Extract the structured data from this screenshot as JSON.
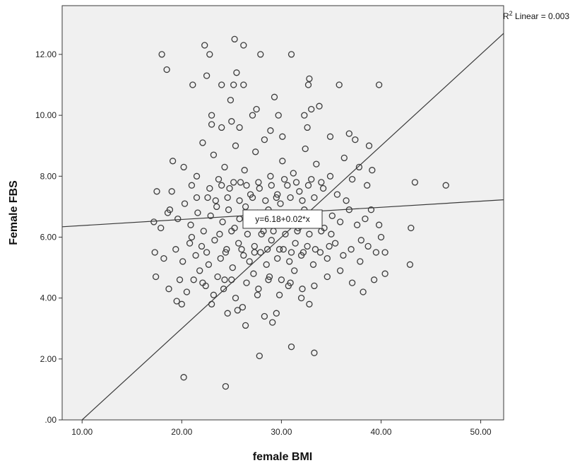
{
  "chart_data": {
    "type": "scatter",
    "xlabel": "female BMI",
    "ylabel": "Female FBS",
    "xlim": [
      8,
      52.3
    ],
    "ylim": [
      0,
      13.6
    ],
    "x_ticks": [
      10,
      20,
      30,
      40,
      50
    ],
    "x_tick_labels": [
      "10.00",
      "20.00",
      "30.00",
      "40.00",
      "50.00"
    ],
    "y_ticks": [
      0,
      2,
      4,
      6,
      8,
      10,
      12
    ],
    "y_tick_labels": [
      ".00",
      "2.00",
      "4.00",
      "6.00",
      "8.00",
      "10.00",
      "12.00"
    ],
    "r2_prefix": "R",
    "r2_sup": "2",
    "r2_suffix": " Linear = 0.003",
    "fit_equation": "y=6.18+0.02*x",
    "fit_line": {
      "intercept": 6.18,
      "slope": 0.02
    },
    "reference_line": {
      "intercept": -3.0,
      "slope": 0.3
    },
    "grid": false,
    "legend": "none",
    "colors": {
      "plot_bg": "#f0f0f0",
      "marker": "#3c3c3c",
      "line": "#3a3a3a",
      "frame": "#3a3a3a"
    },
    "points": [
      [
        18.0,
        12.0
      ],
      [
        18.5,
        11.5
      ],
      [
        22.3,
        12.3
      ],
      [
        22.8,
        12.0
      ],
      [
        25.3,
        12.5
      ],
      [
        26.2,
        12.3
      ],
      [
        27.9,
        12.0
      ],
      [
        31.0,
        12.0
      ],
      [
        21.1,
        11.0
      ],
      [
        22.5,
        11.3
      ],
      [
        24.0,
        11.0
      ],
      [
        25.2,
        11.0
      ],
      [
        25.5,
        11.4
      ],
      [
        26.2,
        11.0
      ],
      [
        32.7,
        11.0
      ],
      [
        32.8,
        11.2
      ],
      [
        35.8,
        11.0
      ],
      [
        39.8,
        11.0
      ],
      [
        24.9,
        10.5
      ],
      [
        27.5,
        10.2
      ],
      [
        29.3,
        10.6
      ],
      [
        32.3,
        10.0
      ],
      [
        33.0,
        10.2
      ],
      [
        33.8,
        10.3
      ],
      [
        23.0,
        10.0
      ],
      [
        25.0,
        9.8
      ],
      [
        27.1,
        10.0
      ],
      [
        29.7,
        10.0
      ],
      [
        23.0,
        9.7
      ],
      [
        24.0,
        9.6
      ],
      [
        25.8,
        9.6
      ],
      [
        28.9,
        9.5
      ],
      [
        32.6,
        9.6
      ],
      [
        34.9,
        9.3
      ],
      [
        36.8,
        9.4
      ],
      [
        37.4,
        9.2
      ],
      [
        38.8,
        9.0
      ],
      [
        30.1,
        9.3
      ],
      [
        17.5,
        7.5
      ],
      [
        18.6,
        6.8
      ],
      [
        19.1,
        8.5
      ],
      [
        20.2,
        8.3
      ],
      [
        21.0,
        7.7
      ],
      [
        21.5,
        8.0
      ],
      [
        22.1,
        9.1
      ],
      [
        22.6,
        7.3
      ],
      [
        23.2,
        8.7
      ],
      [
        23.7,
        7.9
      ],
      [
        24.3,
        8.3
      ],
      [
        24.8,
        7.6
      ],
      [
        25.4,
        9.0
      ],
      [
        25.9,
        7.8
      ],
      [
        26.3,
        8.2
      ],
      [
        26.9,
        7.4
      ],
      [
        27.4,
        8.8
      ],
      [
        27.8,
        7.6
      ],
      [
        28.3,
        9.2
      ],
      [
        28.9,
        8.0
      ],
      [
        29.5,
        7.3
      ],
      [
        30.1,
        8.5
      ],
      [
        30.6,
        7.7
      ],
      [
        31.2,
        8.1
      ],
      [
        31.8,
        7.5
      ],
      [
        32.4,
        8.9
      ],
      [
        33.0,
        7.9
      ],
      [
        33.5,
        8.4
      ],
      [
        34.2,
        7.6
      ],
      [
        34.9,
        8.0
      ],
      [
        35.6,
        7.4
      ],
      [
        36.3,
        8.6
      ],
      [
        37.1,
        7.9
      ],
      [
        37.8,
        8.3
      ],
      [
        38.6,
        7.7
      ],
      [
        39.1,
        8.2
      ],
      [
        43.4,
        7.8
      ],
      [
        46.5,
        7.7
      ],
      [
        17.2,
        6.5
      ],
      [
        17.9,
        6.3
      ],
      [
        18.8,
        6.9
      ],
      [
        19.6,
        6.6
      ],
      [
        20.3,
        7.1
      ],
      [
        20.9,
        6.4
      ],
      [
        21.6,
        6.8
      ],
      [
        22.2,
        6.2
      ],
      [
        22.9,
        6.7
      ],
      [
        23.5,
        7.0
      ],
      [
        24.1,
        6.5
      ],
      [
        24.7,
        6.9
      ],
      [
        25.3,
        6.3
      ],
      [
        25.8,
        6.6
      ],
      [
        26.4,
        7.0
      ],
      [
        27.0,
        6.4
      ],
      [
        27.6,
        6.8
      ],
      [
        28.2,
        6.2
      ],
      [
        28.7,
        6.9
      ],
      [
        29.3,
        6.5
      ],
      [
        29.9,
        7.1
      ],
      [
        30.5,
        6.4
      ],
      [
        31.1,
        6.7
      ],
      [
        31.7,
        6.3
      ],
      [
        32.3,
        6.9
      ],
      [
        32.9,
        6.5
      ],
      [
        33.6,
        6.8
      ],
      [
        34.3,
        6.3
      ],
      [
        35.1,
        6.7
      ],
      [
        35.9,
        6.5
      ],
      [
        36.8,
        6.9
      ],
      [
        37.6,
        6.4
      ],
      [
        38.4,
        6.6
      ],
      [
        39.0,
        6.9
      ],
      [
        39.8,
        6.4
      ],
      [
        43.0,
        6.3
      ],
      [
        17.3,
        5.5
      ],
      [
        18.2,
        5.3
      ],
      [
        19.4,
        5.6
      ],
      [
        20.1,
        5.2
      ],
      [
        20.8,
        5.8
      ],
      [
        21.4,
        5.4
      ],
      [
        22.0,
        5.7
      ],
      [
        22.7,
        5.1
      ],
      [
        23.3,
        5.9
      ],
      [
        23.9,
        5.3
      ],
      [
        24.5,
        5.6
      ],
      [
        25.1,
        5.0
      ],
      [
        25.7,
        5.8
      ],
      [
        26.2,
        5.4
      ],
      [
        26.8,
        5.2
      ],
      [
        27.3,
        5.7
      ],
      [
        27.9,
        5.5
      ],
      [
        28.5,
        5.1
      ],
      [
        29.0,
        5.9
      ],
      [
        29.6,
        5.3
      ],
      [
        30.2,
        5.6
      ],
      [
        30.8,
        5.2
      ],
      [
        31.4,
        5.8
      ],
      [
        32.0,
        5.4
      ],
      [
        32.6,
        5.7
      ],
      [
        33.2,
        5.1
      ],
      [
        33.9,
        5.5
      ],
      [
        34.6,
        5.3
      ],
      [
        35.4,
        5.8
      ],
      [
        36.2,
        5.4
      ],
      [
        37.0,
        5.6
      ],
      [
        37.9,
        5.2
      ],
      [
        38.7,
        5.7
      ],
      [
        39.5,
        5.5
      ],
      [
        40.4,
        5.5
      ],
      [
        42.9,
        5.1
      ],
      [
        17.4,
        4.7
      ],
      [
        18.7,
        4.3
      ],
      [
        19.5,
        3.9
      ],
      [
        20.0,
        3.8
      ],
      [
        20.5,
        4.2
      ],
      [
        21.2,
        4.6
      ],
      [
        21.8,
        4.9
      ],
      [
        22.4,
        4.4
      ],
      [
        23.0,
        3.8
      ],
      [
        23.6,
        4.7
      ],
      [
        24.2,
        4.3
      ],
      [
        24.6,
        3.5
      ],
      [
        25.0,
        4.6
      ],
      [
        25.6,
        3.6
      ],
      [
        26.1,
        3.7
      ],
      [
        26.4,
        3.1
      ],
      [
        27.2,
        4.8
      ],
      [
        27.7,
        4.3
      ],
      [
        28.3,
        3.4
      ],
      [
        28.8,
        4.7
      ],
      [
        29.1,
        3.2
      ],
      [
        29.5,
        3.5
      ],
      [
        30.0,
        4.6
      ],
      [
        30.7,
        4.4
      ],
      [
        31.3,
        4.9
      ],
      [
        32.1,
        4.3
      ],
      [
        32.8,
        3.8
      ],
      [
        33.3,
        4.4
      ],
      [
        34.6,
        4.7
      ],
      [
        35.9,
        4.9
      ],
      [
        37.1,
        4.5
      ],
      [
        38.2,
        4.2
      ],
      [
        39.3,
        4.6
      ],
      [
        40.4,
        4.8
      ],
      [
        27.8,
        2.1
      ],
      [
        31.0,
        2.4
      ],
      [
        33.3,
        2.2
      ],
      [
        20.2,
        1.4
      ],
      [
        24.4,
        1.1
      ],
      [
        21.0,
        6.0
      ],
      [
        22.5,
        5.5
      ],
      [
        23.8,
        6.1
      ],
      [
        24.4,
        5.5
      ],
      [
        25.0,
        6.2
      ],
      [
        26.0,
        5.6
      ],
      [
        26.6,
        6.1
      ],
      [
        27.3,
        5.5
      ],
      [
        28.0,
        6.1
      ],
      [
        28.6,
        5.6
      ],
      [
        29.2,
        6.2
      ],
      [
        29.8,
        5.6
      ],
      [
        30.4,
        6.1
      ],
      [
        31.0,
        5.5
      ],
      [
        31.6,
        6.2
      ],
      [
        32.2,
        5.5
      ],
      [
        32.8,
        6.1
      ],
      [
        33.4,
        5.6
      ],
      [
        34.0,
        6.2
      ],
      [
        34.8,
        5.7
      ],
      [
        21.5,
        7.3
      ],
      [
        22.8,
        7.6
      ],
      [
        23.4,
        7.2
      ],
      [
        24.0,
        7.7
      ],
      [
        24.6,
        7.3
      ],
      [
        25.2,
        7.8
      ],
      [
        25.8,
        7.2
      ],
      [
        26.5,
        7.7
      ],
      [
        27.1,
        7.3
      ],
      [
        27.7,
        7.8
      ],
      [
        28.4,
        7.2
      ],
      [
        29.0,
        7.7
      ],
      [
        29.6,
        7.4
      ],
      [
        30.3,
        7.9
      ],
      [
        30.9,
        7.3
      ],
      [
        31.5,
        7.8
      ],
      [
        32.1,
        7.2
      ],
      [
        32.7,
        7.7
      ],
      [
        33.3,
        7.3
      ],
      [
        34.0,
        7.8
      ],
      [
        22.1,
        4.5
      ],
      [
        23.2,
        4.1
      ],
      [
        24.3,
        4.6
      ],
      [
        25.4,
        4.0
      ],
      [
        26.5,
        4.5
      ],
      [
        27.6,
        4.1
      ],
      [
        28.7,
        4.6
      ],
      [
        29.8,
        4.1
      ],
      [
        30.9,
        4.5
      ],
      [
        32.0,
        4.0
      ],
      [
        19.8,
        4.6
      ],
      [
        19.0,
        7.5
      ],
      [
        40.0,
        6.0
      ],
      [
        38.0,
        5.9
      ],
      [
        36.5,
        7.2
      ],
      [
        35.0,
        6.1
      ]
    ]
  }
}
